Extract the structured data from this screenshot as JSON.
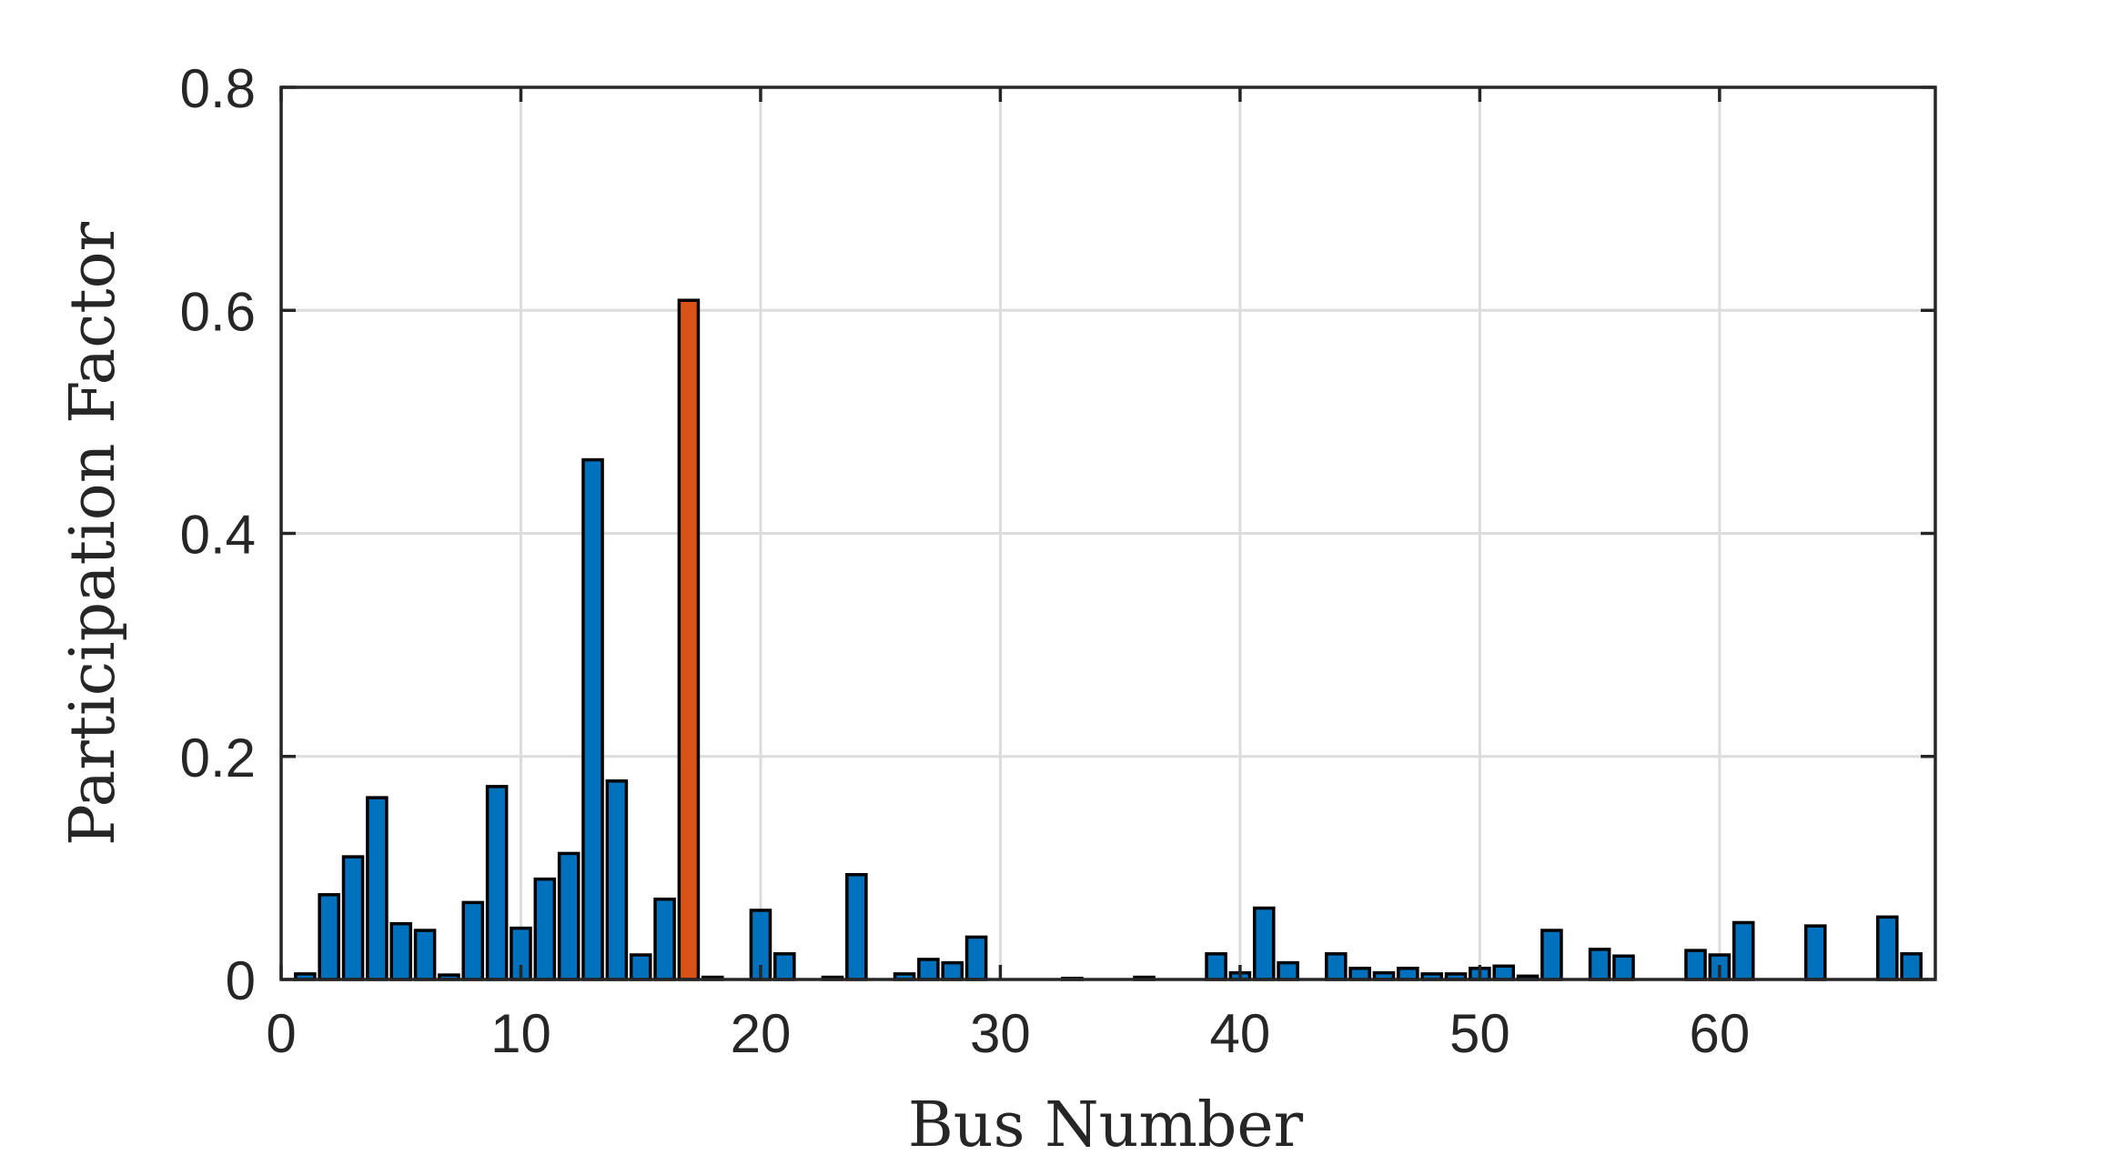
{
  "chart_data": {
    "type": "bar",
    "title": "",
    "xlabel": "Bus Number",
    "ylabel": "Participation Factor",
    "xlim": [
      0,
      69
    ],
    "ylim": [
      0,
      0.8
    ],
    "xticks": [
      0,
      10,
      20,
      30,
      40,
      50,
      60
    ],
    "xtick_labels": [
      "0",
      "10",
      "20",
      "30",
      "40",
      "50",
      "60"
    ],
    "yticks": [
      0,
      0.2,
      0.4,
      0.6,
      0.8
    ],
    "ytick_labels": [
      "0",
      "0.2",
      "0.4",
      "0.6",
      "0.8"
    ],
    "grid": true,
    "legend": "none",
    "colors": {
      "default": "#0072BD",
      "highlight": "#D95319",
      "edge": "#000000",
      "grid": "#dcdcdc",
      "axis": "#262626"
    },
    "x": [
      1,
      2,
      3,
      4,
      5,
      6,
      7,
      8,
      9,
      10,
      11,
      12,
      13,
      14,
      15,
      16,
      17,
      18,
      19,
      20,
      21,
      22,
      23,
      24,
      25,
      26,
      27,
      28,
      29,
      30,
      31,
      32,
      33,
      34,
      35,
      36,
      37,
      38,
      39,
      40,
      41,
      42,
      43,
      44,
      45,
      46,
      47,
      48,
      49,
      50,
      51,
      52,
      53,
      54,
      55,
      56,
      57,
      58,
      59,
      60,
      61,
      62,
      63,
      64,
      65,
      66,
      67,
      68
    ],
    "values": [
      0.005,
      0.076,
      0.11,
      0.163,
      0.05,
      0.044,
      0.004,
      0.069,
      0.173,
      0.046,
      0.09,
      0.113,
      0.466,
      0.178,
      0.022,
      0.072,
      0.609,
      0.002,
      0,
      0.062,
      0.023,
      0,
      0.002,
      0.094,
      0,
      0.005,
      0.018,
      0.015,
      0.038,
      0,
      0,
      0,
      0.001,
      0,
      0,
      0.002,
      0,
      0,
      0.023,
      0.006,
      0.064,
      0.015,
      0,
      0.023,
      0.01,
      0.006,
      0.01,
      0.005,
      0.005,
      0.01,
      0.012,
      0.003,
      0.044,
      0,
      0.027,
      0.021,
      0,
      0,
      0.026,
      0.022,
      0.051,
      0,
      0,
      0.048,
      0,
      0,
      0.056,
      0.023
    ],
    "highlight_x": 17
  }
}
